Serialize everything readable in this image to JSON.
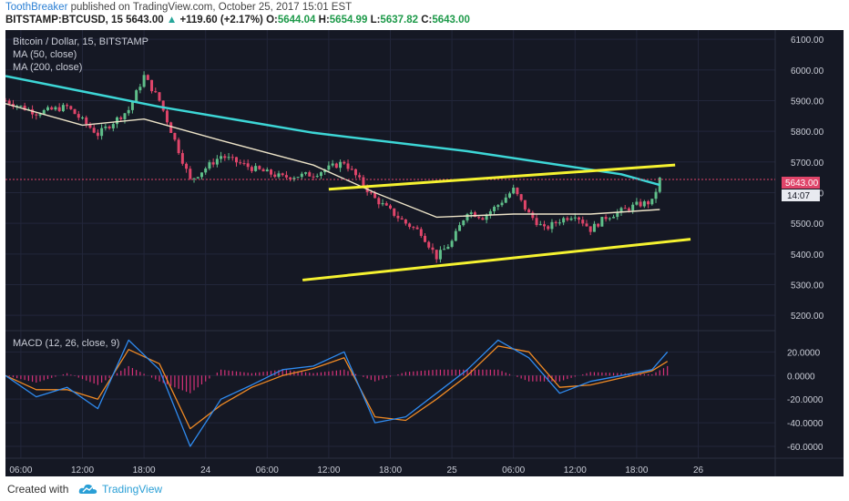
{
  "header": {
    "author": "ToothBreaker",
    "published_text": "published on TradingView.com, October 25, 2017 15:01 EST",
    "symbol_line": {
      "symbol": "BITSTAMP:BTCUSD, 15",
      "price": "5643.00",
      "change": "+119.60 (+2.17%)",
      "o_label": "O:",
      "o_value": "5644.04",
      "h_label": "H:",
      "h_value": "5654.99",
      "l_label": "L:",
      "l_value": "5637.82",
      "c_label": "C:",
      "c_value": "5643.00"
    }
  },
  "legend": {
    "title": "Bitcoin / Dollar, 15, BITSTAMP",
    "ma50": "MA (50, close)",
    "ma200": "MA (200, close)",
    "macd": "MACD (12, 26, close, 9)"
  },
  "price_badge": {
    "value": "5643.00",
    "countdown": "14:07"
  },
  "colors": {
    "background": "#151824",
    "up_candle": "#5fbf8a",
    "down_candle": "#e0456a",
    "ma50": "#ece3c8",
    "ma200": "#3dd6d6",
    "trend": "#f5f230",
    "macd_line": "#2f8bf0",
    "signal_line": "#f08a24",
    "histogram": "#d8327a",
    "price_line": "#e0456a"
  },
  "chart_data": [
    {
      "type": "line",
      "title": "Bitcoin / Dollar, 15, BITSTAMP",
      "x_ticks": [
        "06:00",
        "12:00",
        "18:00",
        "24",
        "06:00",
        "12:00",
        "18:00",
        "25",
        "06:00",
        "12:00",
        "18:00",
        "26"
      ],
      "y_ticks": [
        "6100.00",
        "6000.00",
        "5900.00",
        "5800.00",
        "5700.00",
        "5600.00",
        "5500.00",
        "5400.00",
        "5300.00",
        "5200.00"
      ],
      "ylim": [
        5150,
        6130
      ],
      "grid": true,
      "series": [
        {
          "name": "MA (200, close)",
          "x": [
            0,
            10,
            20,
            30,
            40,
            42.5
          ],
          "y": [
            5980,
            5880,
            5795,
            5735,
            5660,
            5625
          ]
        },
        {
          "name": "MA (50, close)",
          "x": [
            0,
            5,
            9,
            14,
            20,
            24,
            28,
            33,
            38,
            42.5
          ],
          "y": [
            5890,
            5820,
            5840,
            5770,
            5690,
            5600,
            5520,
            5530,
            5530,
            5545
          ]
        },
        {
          "name": "Price",
          "x": [
            0,
            2,
            4,
            6,
            8,
            9,
            10,
            12,
            14,
            16,
            18,
            20,
            22,
            24,
            26,
            27,
            28,
            29,
            30,
            31,
            32,
            33,
            34,
            35,
            36,
            37,
            38,
            39,
            40,
            41,
            42,
            42.5
          ],
          "y": [
            5900,
            5860,
            5880,
            5790,
            5870,
            5980,
            5900,
            5640,
            5720,
            5680,
            5650,
            5660,
            5700,
            5580,
            5500,
            5470,
            5390,
            5440,
            5540,
            5520,
            5560,
            5610,
            5530,
            5480,
            5510,
            5530,
            5480,
            5520,
            5540,
            5560,
            5570,
            5643
          ]
        }
      ],
      "trendlines": [
        {
          "x": [
            21,
            43.5
          ],
          "y": [
            5611,
            5690
          ]
        },
        {
          "x": [
            19.3,
            44.5
          ],
          "y": [
            5315,
            5448
          ]
        }
      ],
      "last_price": 5643.0
    },
    {
      "type": "line",
      "title": "MACD (12, 26, close, 9)",
      "y_ticks": [
        "20.0000",
        "0.0000",
        "-20.0000",
        "-40.0000",
        "-60.0000"
      ],
      "ylim": [
        -70,
        38
      ],
      "grid": true,
      "series": [
        {
          "name": "MACD",
          "x": [
            0,
            2,
            4,
            6,
            8,
            10,
            12,
            14,
            16,
            18,
            20,
            22,
            24,
            26,
            28,
            30,
            32,
            34,
            36,
            38,
            40,
            42,
            43
          ],
          "y": [
            0,
            -18,
            -10,
            -28,
            30,
            5,
            -60,
            -20,
            -8,
            5,
            8,
            20,
            -40,
            -35,
            -15,
            5,
            30,
            15,
            -15,
            -5,
            0,
            5,
            20
          ]
        },
        {
          "name": "Signal",
          "x": [
            0,
            2,
            4,
            6,
            8,
            10,
            12,
            14,
            16,
            18,
            20,
            22,
            24,
            26,
            28,
            30,
            32,
            34,
            36,
            38,
            40,
            42,
            43
          ],
          "y": [
            0,
            -12,
            -12,
            -20,
            22,
            10,
            -45,
            -25,
            -10,
            0,
            6,
            15,
            -35,
            -38,
            -20,
            0,
            25,
            20,
            -10,
            -8,
            -2,
            4,
            12
          ]
        }
      ]
    }
  ]
}
